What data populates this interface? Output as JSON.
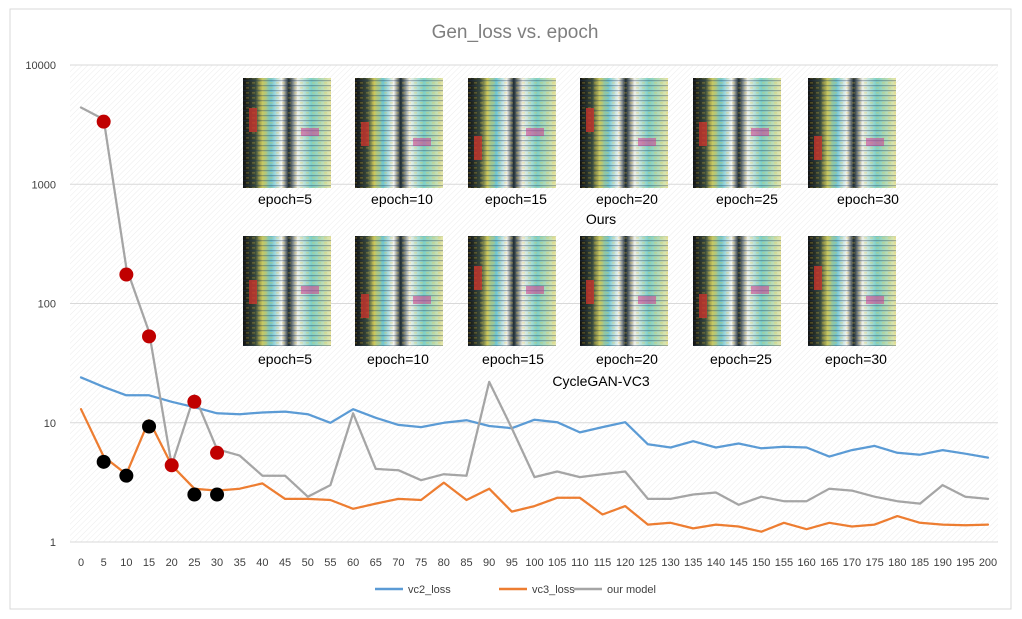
{
  "chart_data": {
    "type": "line",
    "title": "Gen_loss vs. epoch",
    "yscale": "log",
    "ylim": [
      1,
      10000
    ],
    "y_ticks": [
      "1",
      "10",
      "100",
      "1000",
      "10000"
    ],
    "x": [
      0,
      5,
      10,
      15,
      20,
      25,
      30,
      35,
      40,
      45,
      50,
      55,
      60,
      65,
      70,
      75,
      80,
      85,
      90,
      95,
      100,
      105,
      110,
      115,
      120,
      125,
      130,
      135,
      140,
      145,
      150,
      155,
      160,
      165,
      170,
      175,
      180,
      185,
      190,
      195,
      200
    ],
    "series": [
      {
        "name": "vc2_loss",
        "color": "#5b9bd5",
        "values": [
          24,
          20,
          17,
          17,
          15,
          13.5,
          12,
          11.8,
          12.2,
          12.4,
          11.8,
          10,
          13,
          11,
          9.6,
          9.2,
          10,
          10.5,
          9.4,
          9,
          10.6,
          10.1,
          8.3,
          9.2,
          10.1,
          6.6,
          6.2,
          7,
          6.2,
          6.7,
          6.1,
          6.3,
          6.2,
          5.2,
          5.9,
          6.4,
          5.6,
          5.4,
          5.9,
          5.5,
          5.1
        ]
      },
      {
        "name": "vc3_loss",
        "color": "#ed7d31",
        "values": [
          13,
          5.2,
          3.7,
          10.5,
          4.4,
          2.8,
          2.7,
          2.8,
          3.1,
          2.3,
          2.3,
          2.25,
          1.9,
          2.1,
          2.3,
          2.25,
          3.15,
          2.25,
          2.8,
          1.8,
          2,
          2.35,
          2.35,
          1.7,
          2,
          1.4,
          1.45,
          1.3,
          1.4,
          1.35,
          1.22,
          1.45,
          1.28,
          1.45,
          1.35,
          1.4,
          1.65,
          1.45,
          1.4,
          1.38,
          1.4
        ]
      },
      {
        "name": "our model",
        "color": "#a5a5a5",
        "values": [
          4400,
          3500,
          200,
          58,
          4.4,
          17,
          6,
          5.3,
          3.6,
          3.6,
          2.4,
          3,
          12,
          4.1,
          4,
          3.3,
          3.7,
          3.6,
          22,
          9,
          3.5,
          3.9,
          3.5,
          3.7,
          3.9,
          2.3,
          2.3,
          2.5,
          2.6,
          2.05,
          2.4,
          2.2,
          2.2,
          2.8,
          2.7,
          2.4,
          2.2,
          2.1,
          3,
          2.4,
          2.3
        ]
      }
    ],
    "markers": [
      {
        "color": "#c00000",
        "points": [
          [
            5,
            3350
          ],
          [
            10,
            175
          ],
          [
            15,
            53
          ],
          [
            20,
            4.4
          ],
          [
            25,
            15
          ],
          [
            30,
            5.6
          ]
        ]
      },
      {
        "color": "#000000",
        "points": [
          [
            5,
            4.7
          ],
          [
            10,
            3.6
          ],
          [
            15,
            9.3
          ],
          [
            25,
            2.5
          ],
          [
            30,
            2.5
          ]
        ]
      }
    ],
    "annotations": {
      "top_row": {
        "labels": [
          "epoch=5",
          "epoch=10",
          "epoch=15",
          "epoch=20",
          "epoch=25",
          "epoch=30"
        ],
        "caption": "Ours"
      },
      "bottom_row": {
        "labels": [
          "epoch=5",
          "epoch=10",
          "epoch=15",
          "epoch=20",
          "epoch=25",
          "epoch=30"
        ],
        "caption": "CycleGAN-VC3"
      }
    },
    "grid": true,
    "legend": "bottom"
  }
}
